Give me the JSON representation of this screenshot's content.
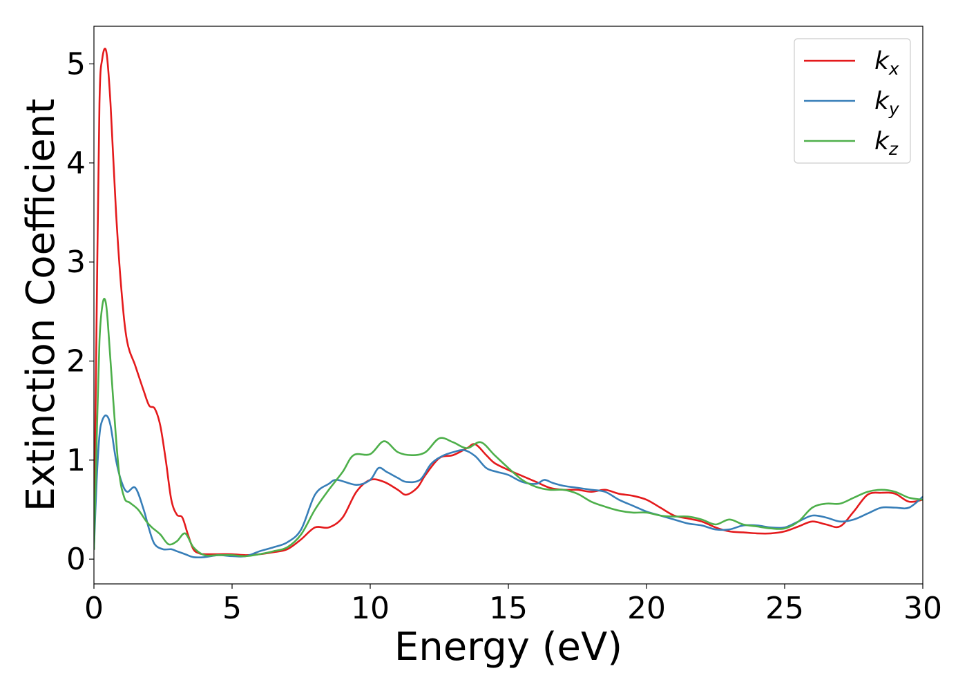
{
  "chart_data": {
    "type": "line",
    "xlabel": "Energy (eV)",
    "ylabel": "Extinction Coefficient",
    "xlim": [
      0,
      30
    ],
    "ylim": [
      -0.25,
      5.38
    ],
    "x_ticks": [
      0,
      5,
      10,
      15,
      20,
      25,
      30
    ],
    "y_ticks": [
      0,
      1,
      2,
      3,
      4,
      5
    ],
    "x_tick_labels": [
      "0",
      "5",
      "10",
      "15",
      "20",
      "25",
      "30"
    ],
    "y_tick_labels": [
      "0",
      "1",
      "2",
      "3",
      "4",
      "5"
    ],
    "legend_position": "top-right",
    "grid": false,
    "series": [
      {
        "name": "k_x",
        "label_base": "k",
        "label_sub": "x",
        "color": "#e41a1c",
        "x": [
          0,
          0.1,
          0.2,
          0.3,
          0.45,
          0.6,
          0.8,
          1.0,
          1.2,
          1.5,
          1.8,
          2.0,
          2.2,
          2.4,
          2.6,
          2.8,
          3.0,
          3.2,
          3.4,
          3.6,
          3.8,
          4.0,
          4.5,
          5.0,
          5.5,
          6.0,
          6.5,
          7.0,
          7.5,
          8.0,
          8.5,
          9.0,
          9.5,
          10.0,
          10.5,
          11.0,
          11.3,
          11.7,
          12.0,
          12.5,
          13.0,
          13.5,
          13.8,
          14.2,
          14.5,
          15.0,
          15.5,
          16.0,
          16.5,
          17.0,
          17.5,
          18.0,
          18.5,
          19.0,
          19.5,
          20.0,
          20.5,
          21.0,
          21.5,
          22.0,
          22.5,
          23.0,
          23.5,
          24.0,
          24.5,
          25.0,
          25.5,
          26.0,
          26.5,
          27.0,
          27.5,
          28.0,
          28.5,
          29.0,
          29.5,
          30.0
        ],
        "y": [
          0.1,
          2.5,
          4.6,
          5.05,
          5.12,
          4.6,
          3.5,
          2.7,
          2.2,
          1.95,
          1.7,
          1.55,
          1.52,
          1.35,
          1.0,
          0.6,
          0.45,
          0.42,
          0.25,
          0.1,
          0.06,
          0.05,
          0.05,
          0.05,
          0.04,
          0.05,
          0.07,
          0.1,
          0.2,
          0.32,
          0.32,
          0.42,
          0.68,
          0.8,
          0.78,
          0.7,
          0.65,
          0.72,
          0.85,
          1.02,
          1.05,
          1.12,
          1.16,
          1.05,
          0.97,
          0.9,
          0.84,
          0.78,
          0.72,
          0.7,
          0.7,
          0.68,
          0.7,
          0.66,
          0.64,
          0.6,
          0.52,
          0.44,
          0.41,
          0.38,
          0.32,
          0.28,
          0.27,
          0.26,
          0.26,
          0.28,
          0.33,
          0.38,
          0.35,
          0.33,
          0.48,
          0.65,
          0.67,
          0.66,
          0.58,
          0.6
        ]
      },
      {
        "name": "k_y",
        "label_base": "k",
        "label_sub": "y",
        "color": "#377eb8",
        "x": [
          0,
          0.1,
          0.2,
          0.3,
          0.45,
          0.6,
          0.8,
          1.0,
          1.2,
          1.5,
          1.8,
          2.0,
          2.2,
          2.5,
          2.8,
          3.0,
          3.3,
          3.6,
          4.0,
          4.5,
          5.0,
          5.5,
          6.0,
          6.5,
          7.0,
          7.5,
          8.0,
          8.5,
          8.8,
          9.5,
          10.0,
          10.3,
          10.6,
          11.0,
          11.3,
          11.8,
          12.2,
          12.6,
          13.0,
          13.4,
          13.8,
          14.2,
          14.6,
          15.0,
          15.5,
          16.0,
          16.3,
          16.6,
          17.0,
          17.5,
          18.0,
          18.5,
          19.0,
          19.5,
          20.0,
          20.5,
          21.0,
          21.5,
          22.0,
          22.5,
          23.0,
          23.5,
          24.0,
          24.5,
          25.0,
          25.5,
          26.0,
          26.5,
          27.0,
          27.5,
          28.0,
          28.5,
          29.0,
          29.5,
          30.0
        ],
        "y": [
          0.1,
          0.8,
          1.25,
          1.4,
          1.45,
          1.35,
          1.0,
          0.78,
          0.68,
          0.72,
          0.5,
          0.3,
          0.15,
          0.1,
          0.1,
          0.08,
          0.05,
          0.02,
          0.02,
          0.04,
          0.03,
          0.03,
          0.08,
          0.12,
          0.17,
          0.3,
          0.65,
          0.76,
          0.8,
          0.75,
          0.8,
          0.92,
          0.88,
          0.82,
          0.78,
          0.8,
          0.96,
          1.04,
          1.08,
          1.1,
          1.04,
          0.92,
          0.88,
          0.85,
          0.78,
          0.76,
          0.8,
          0.77,
          0.74,
          0.72,
          0.7,
          0.68,
          0.6,
          0.54,
          0.48,
          0.44,
          0.4,
          0.36,
          0.34,
          0.3,
          0.3,
          0.34,
          0.34,
          0.32,
          0.32,
          0.38,
          0.44,
          0.42,
          0.38,
          0.4,
          0.46,
          0.52,
          0.52,
          0.52,
          0.63
        ]
      },
      {
        "name": "k_z",
        "label_base": "k",
        "label_sub": "z",
        "color": "#4daf4a",
        "x": [
          0,
          0.1,
          0.2,
          0.3,
          0.4,
          0.5,
          0.7,
          0.9,
          1.1,
          1.3,
          1.6,
          1.9,
          2.1,
          2.4,
          2.7,
          3.0,
          3.3,
          3.6,
          4.0,
          4.5,
          5.0,
          5.5,
          6.0,
          6.5,
          7.0,
          7.5,
          8.0,
          8.5,
          9.0,
          9.4,
          10.0,
          10.5,
          11.0,
          11.5,
          12.0,
          12.5,
          13.0,
          13.5,
          14.0,
          14.5,
          15.0,
          15.5,
          16.0,
          16.5,
          17.0,
          17.5,
          18.0,
          18.5,
          19.0,
          19.5,
          20.0,
          20.5,
          21.0,
          21.5,
          22.0,
          22.5,
          23.0,
          23.5,
          24.0,
          24.5,
          25.0,
          25.5,
          26.0,
          26.5,
          27.0,
          27.5,
          28.0,
          28.5,
          29.0,
          29.5,
          30.0
        ],
        "y": [
          0.1,
          1.2,
          2.2,
          2.55,
          2.62,
          2.4,
          1.6,
          0.9,
          0.62,
          0.57,
          0.5,
          0.38,
          0.32,
          0.25,
          0.15,
          0.18,
          0.26,
          0.12,
          0.04,
          0.04,
          0.04,
          0.03,
          0.05,
          0.08,
          0.12,
          0.25,
          0.5,
          0.7,
          0.88,
          1.05,
          1.06,
          1.19,
          1.08,
          1.05,
          1.08,
          1.22,
          1.18,
          1.12,
          1.18,
          1.05,
          0.92,
          0.8,
          0.73,
          0.7,
          0.7,
          0.66,
          0.58,
          0.53,
          0.49,
          0.47,
          0.47,
          0.44,
          0.43,
          0.43,
          0.4,
          0.35,
          0.4,
          0.35,
          0.33,
          0.31,
          0.31,
          0.38,
          0.52,
          0.56,
          0.56,
          0.62,
          0.68,
          0.7,
          0.68,
          0.62,
          0.6
        ]
      }
    ]
  }
}
